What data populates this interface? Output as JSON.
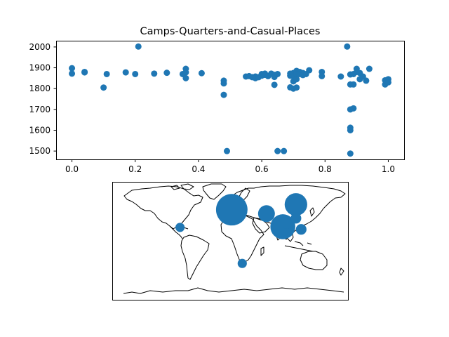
{
  "chart_data": [
    {
      "type": "scatter",
      "title": "Camps-Quarters-and-Casual-Places",
      "xlabel": "",
      "ylabel": "",
      "xlim": [
        -0.05,
        1.05
      ],
      "ylim": [
        1460,
        2030
      ],
      "xticks": [
        "0.0",
        "0.2",
        "0.4",
        "0.6",
        "0.8",
        "1.0"
      ],
      "yticks": [
        "1500",
        "1600",
        "1700",
        "1800",
        "1900",
        "2000"
      ],
      "marker_color": "#1f77b4",
      "grid": false,
      "points": [
        [
          0.0,
          1898
        ],
        [
          0.0,
          1872
        ],
        [
          0.04,
          1880
        ],
        [
          0.04,
          1878
        ],
        [
          0.1,
          1805
        ],
        [
          0.11,
          1870
        ],
        [
          0.17,
          1878
        ],
        [
          0.2,
          1870
        ],
        [
          0.21,
          2002
        ],
        [
          0.26,
          1872
        ],
        [
          0.3,
          1876
        ],
        [
          0.35,
          1870
        ],
        [
          0.36,
          1895
        ],
        [
          0.36,
          1878
        ],
        [
          0.36,
          1850
        ],
        [
          0.41,
          1874
        ],
        [
          0.48,
          1770
        ],
        [
          0.48,
          1825
        ],
        [
          0.48,
          1838
        ],
        [
          0.49,
          1500
        ],
        [
          0.55,
          1858
        ],
        [
          0.56,
          1860
        ],
        [
          0.57,
          1855
        ],
        [
          0.58,
          1858
        ],
        [
          0.58,
          1850
        ],
        [
          0.59,
          1855
        ],
        [
          0.6,
          1862
        ],
        [
          0.6,
          1870
        ],
        [
          0.61,
          1872
        ],
        [
          0.61,
          1866
        ],
        [
          0.62,
          1860
        ],
        [
          0.63,
          1872
        ],
        [
          0.64,
          1866
        ],
        [
          0.64,
          1818
        ],
        [
          0.64,
          1856
        ],
        [
          0.65,
          1870
        ],
        [
          0.65,
          1500
        ],
        [
          0.67,
          1500
        ],
        [
          0.69,
          1872
        ],
        [
          0.69,
          1862
        ],
        [
          0.69,
          1806
        ],
        [
          0.7,
          1800
        ],
        [
          0.7,
          1875
        ],
        [
          0.7,
          1835
        ],
        [
          0.7,
          1860
        ],
        [
          0.71,
          1885
        ],
        [
          0.71,
          1870
        ],
        [
          0.71,
          1805
        ],
        [
          0.71,
          1845
        ],
        [
          0.72,
          1880
        ],
        [
          0.72,
          1870
        ],
        [
          0.73,
          1875
        ],
        [
          0.73,
          1865
        ],
        [
          0.74,
          1870
        ],
        [
          0.75,
          1888
        ],
        [
          0.79,
          1880
        ],
        [
          0.79,
          1860
        ],
        [
          0.85,
          1858
        ],
        [
          0.87,
          2002
        ],
        [
          0.88,
          1868
        ],
        [
          0.88,
          1820
        ],
        [
          0.88,
          1700
        ],
        [
          0.88,
          1612
        ],
        [
          0.88,
          1600
        ],
        [
          0.88,
          1488
        ],
        [
          0.89,
          1705
        ],
        [
          0.89,
          1820
        ],
        [
          0.89,
          1870
        ],
        [
          0.9,
          1880
        ],
        [
          0.9,
          1895
        ],
        [
          0.91,
          1875
        ],
        [
          0.91,
          1845
        ],
        [
          0.92,
          1858
        ],
        [
          0.93,
          1838
        ],
        [
          0.94,
          1895
        ],
        [
          0.99,
          1840
        ],
        [
          0.99,
          1820
        ],
        [
          1.0,
          1845
        ],
        [
          1.0,
          1830
        ]
      ]
    },
    {
      "type": "map",
      "projection": "equirectangular",
      "lon_range": [
        -180,
        180
      ],
      "lat_range": [
        -90,
        90
      ],
      "marker_color": "#1f77b4",
      "bubbles": [
        {
          "lon": 2,
          "lat": 48,
          "size": 3.5
        },
        {
          "lon": 55,
          "lat": 42,
          "size": 1.0
        },
        {
          "lon": 80,
          "lat": 22,
          "size": 2.2
        },
        {
          "lon": 86,
          "lat": 28,
          "size": 0.5
        },
        {
          "lon": 100,
          "lat": 56,
          "size": 1.8
        },
        {
          "lon": 100,
          "lat": 35,
          "size": 0.4
        },
        {
          "lon": 108,
          "lat": 18,
          "size": 0.4
        },
        {
          "lon": 18,
          "lat": -34,
          "size": 0.3
        },
        {
          "lon": -77,
          "lat": 21,
          "size": 0.3
        }
      ]
    }
  ]
}
